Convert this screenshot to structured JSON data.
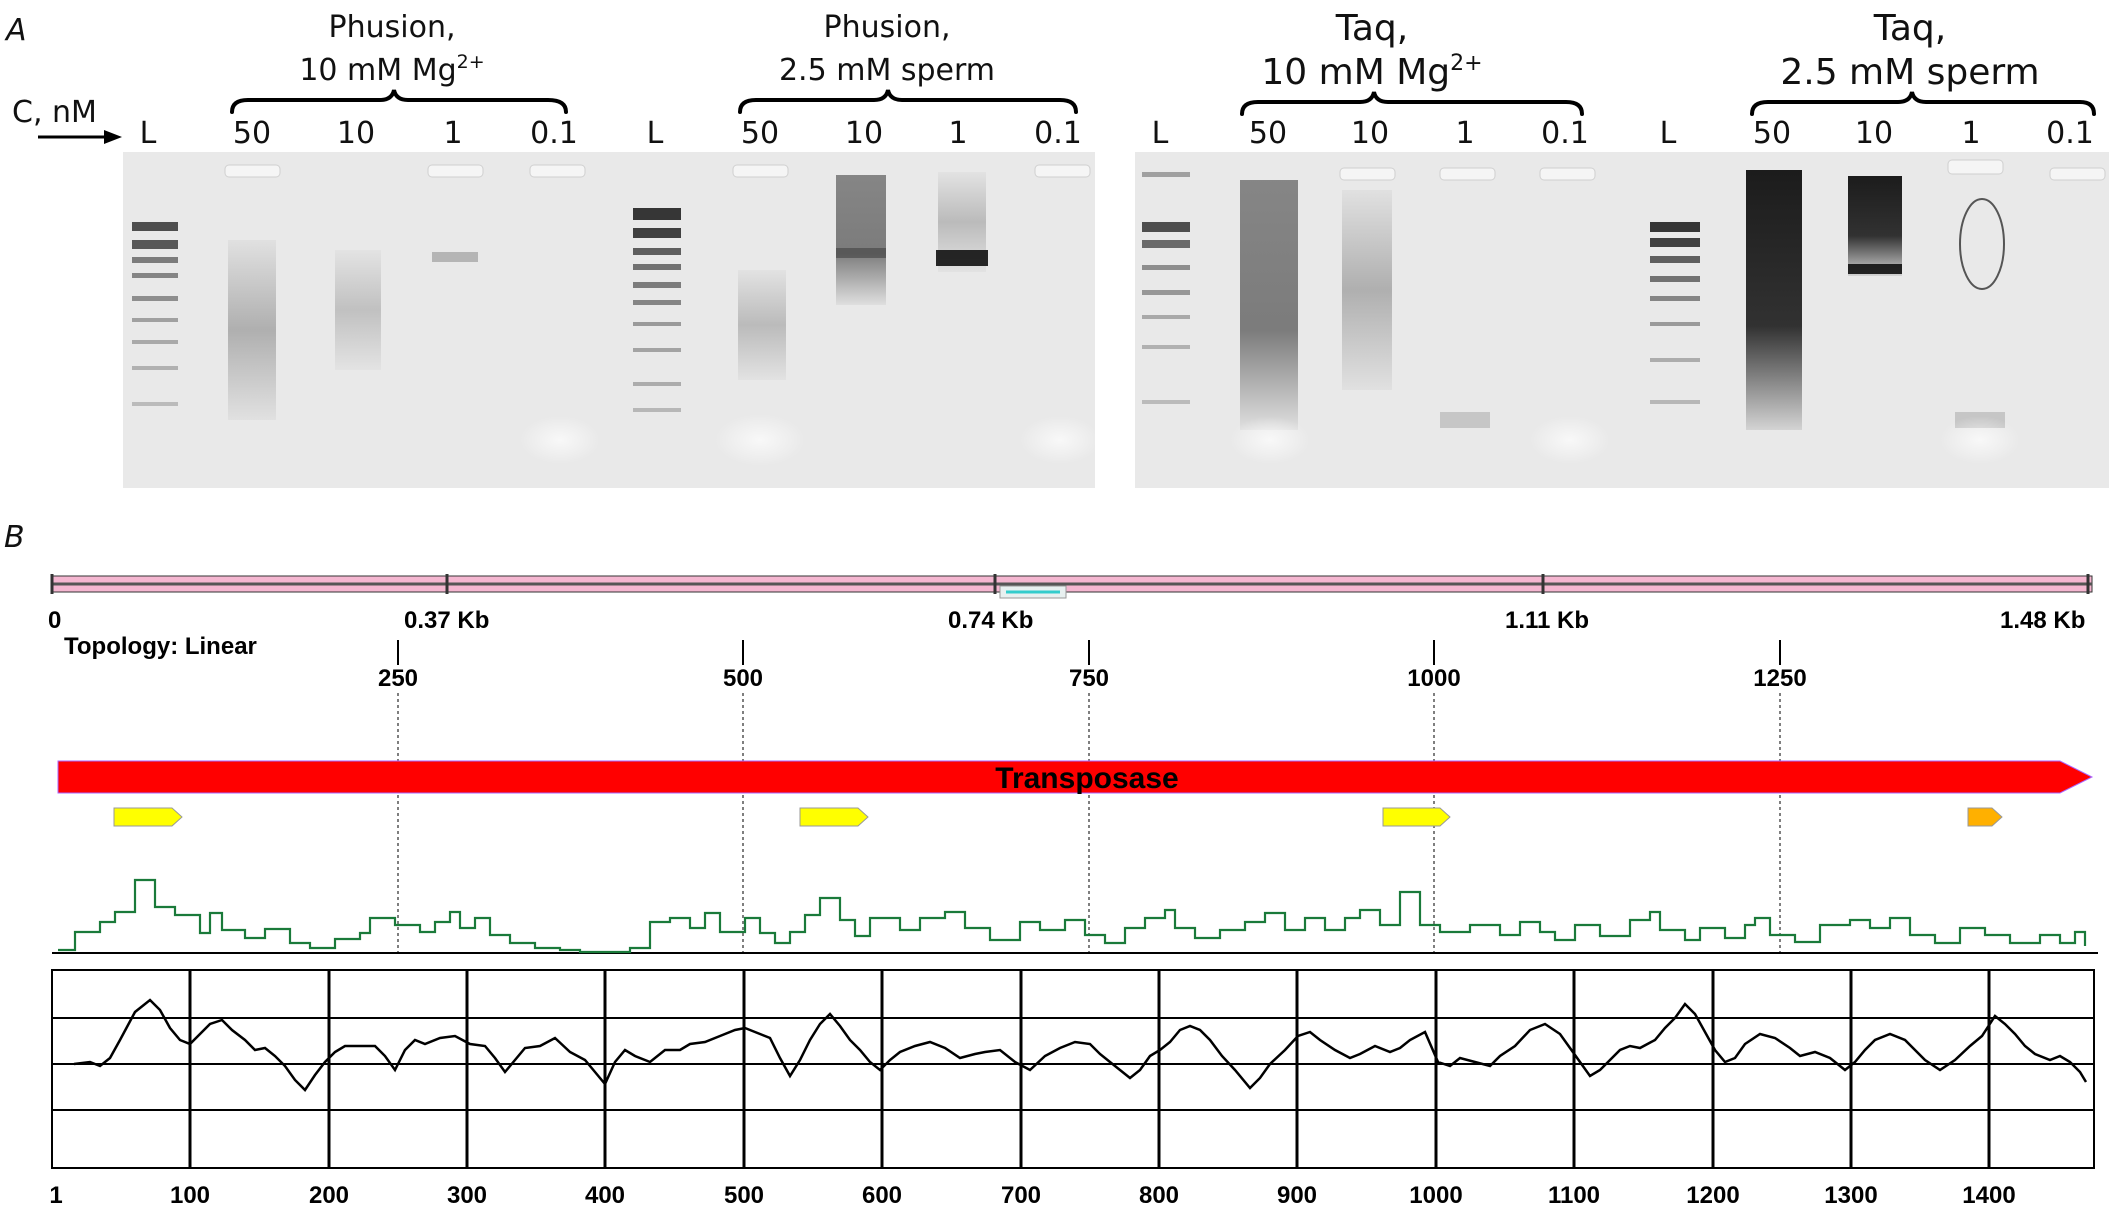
{
  "panel_a": {
    "letter": "A",
    "axis_label": "C, nM",
    "groups": [
      {
        "line1": "Phusion,",
        "line2_main": "10 mM Mg",
        "line2_sup": "2+",
        "lanes": [
          "L",
          "50",
          "10",
          "1",
          "0.1"
        ]
      },
      {
        "line1": "Phusion,",
        "line2_main": "2.5 mM sperm",
        "line2_sup": "",
        "lanes": [
          "L",
          "50",
          "10",
          "1",
          "0.1"
        ]
      },
      {
        "line1": "Taq,",
        "line2_main": "10 mM Mg",
        "line2_sup": "2+",
        "lanes": [
          "L",
          "50",
          "10",
          "1",
          "0.1"
        ]
      },
      {
        "line1": "Taq,",
        "line2_main": "2.5 mM sperm",
        "line2_sup": "",
        "lanes": [
          "L",
          "50",
          "10",
          "1",
          "0.1"
        ]
      }
    ]
  },
  "panel_b": {
    "letter": "B",
    "ruler_labels": [
      "0",
      "0.37 Kb",
      "0.74 Kb",
      "1.11 Kb",
      "1.48 Kb"
    ],
    "topology": "Topology: Linear",
    "position_ticks": [
      "250",
      "500",
      "750",
      "1000",
      "1250"
    ],
    "feature_label": "Transposase",
    "bottom_axis": [
      "1",
      "100",
      "200",
      "300",
      "400",
      "500",
      "600",
      "700",
      "800",
      "900",
      "1000",
      "1100",
      "1200",
      "1300",
      "1400"
    ]
  },
  "colors": {
    "ruler_fill": "#f4b6d0",
    "feature": "#ff0000",
    "orf_yellow": "#ffff00",
    "orf_orange": "#ffb000",
    "green_trace": "#1a7a3a",
    "black_trace": "#000000"
  }
}
